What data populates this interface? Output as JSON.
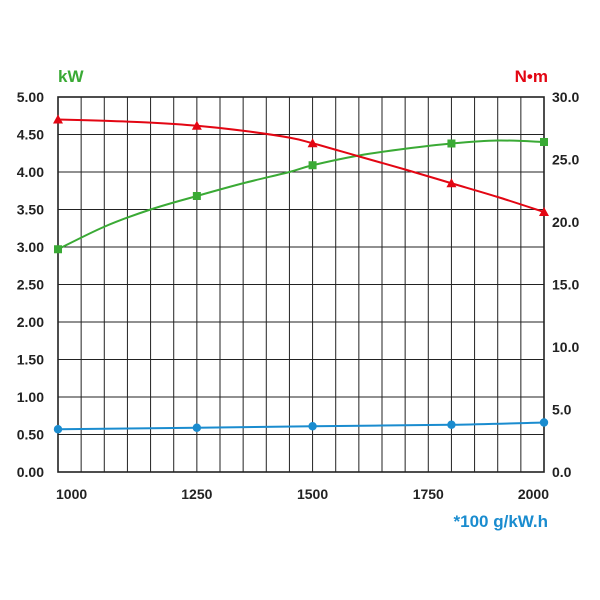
{
  "chart_data": {
    "type": "line",
    "xlabel": "",
    "left_axis_unit": "kW",
    "right_axis_unit": "N•m",
    "bottom_note": "*100 g/kW.h",
    "xlim": [
      950,
      2000
    ],
    "ylim_left": [
      0,
      5
    ],
    "ylim_right": [
      0,
      30
    ],
    "x_ticks": [
      1000,
      1250,
      1500,
      1750,
      2000
    ],
    "x_tick_labels": [
      "1000",
      "1250",
      "1500",
      "1750",
      "2000"
    ],
    "y_left_ticks": [
      0,
      0.5,
      1,
      1.5,
      2,
      2.5,
      3,
      3.5,
      4,
      4.5,
      5
    ],
    "y_left_tick_labels": [
      "0.00",
      "0.50",
      "1.00",
      "1.50",
      "2.00",
      "2.50",
      "3.00",
      "3.50",
      "4.00",
      "4.50",
      "5.00"
    ],
    "y_right_ticks": [
      0,
      5,
      10,
      15,
      20,
      25,
      30
    ],
    "y_right_tick_labels": [
      "0.0",
      "5.0",
      "10.0",
      "15.0",
      "20.0",
      "25.0",
      "30.0"
    ],
    "grid": true,
    "series": [
      {
        "axis": "left",
        "color": "#3aaa35",
        "marker": "square",
        "x": [
          950,
          1250,
          1500,
          1800,
          2000
        ],
        "y": [
          2.97,
          3.68,
          4.09,
          4.38,
          4.4
        ],
        "curve_x": [
          950,
          1050,
          1150,
          1250,
          1350,
          1450,
          1500,
          1600,
          1700,
          1800,
          1900,
          2000
        ],
        "curve_y": [
          2.97,
          3.27,
          3.5,
          3.68,
          3.85,
          4.0,
          4.09,
          4.22,
          4.31,
          4.38,
          4.42,
          4.4
        ]
      },
      {
        "axis": "right",
        "color": "#e30613",
        "marker": "triangle",
        "x": [
          950,
          1250,
          1500,
          1800,
          2000
        ],
        "y": [
          28.2,
          27.7,
          26.3,
          23.1,
          20.8
        ],
        "curve_x": [
          950,
          1050,
          1150,
          1250,
          1350,
          1450,
          1500,
          1600,
          1700,
          1800,
          1900,
          2000
        ],
        "curve_y": [
          28.2,
          28.1,
          27.95,
          27.7,
          27.3,
          26.75,
          26.3,
          25.25,
          24.2,
          23.1,
          22.0,
          20.8
        ]
      },
      {
        "axis": "left",
        "color": "#1a8ccf",
        "marker": "circle",
        "x": [
          950,
          1250,
          1500,
          1800,
          2000
        ],
        "y": [
          0.57,
          0.59,
          0.61,
          0.63,
          0.66
        ],
        "curve_x": [
          950,
          1250,
          1500,
          1800,
          2000
        ],
        "curve_y": [
          0.57,
          0.59,
          0.61,
          0.63,
          0.66
        ]
      }
    ]
  },
  "colors": {
    "power": "#3aaa35",
    "torque": "#e30613",
    "consumption": "#1a8ccf",
    "grid": "#222222"
  }
}
